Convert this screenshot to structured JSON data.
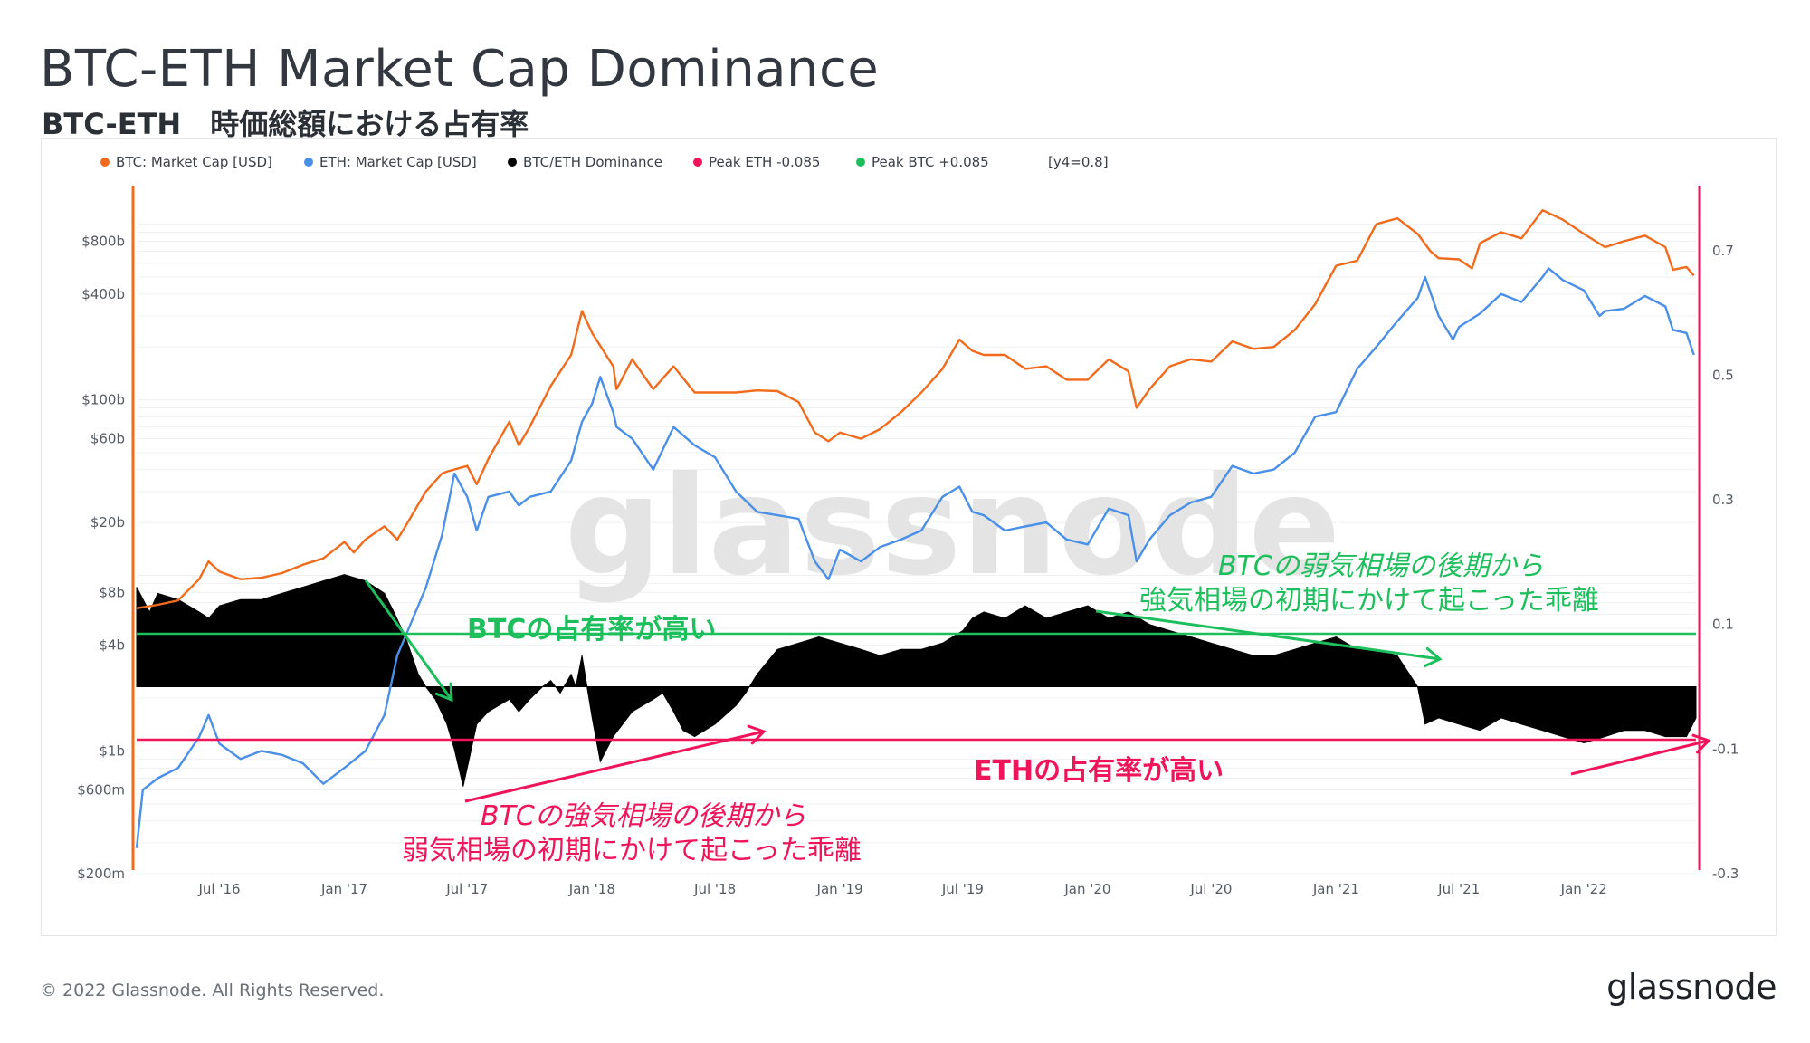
{
  "page": {
    "title": "BTC-ETH Market Cap Dominance",
    "subtitle": "BTC-ETH　時価総額における占有率",
    "footer_copyright": "© 2022 Glassnode. All Rights Reserved.",
    "footer_logo": "glassnode",
    "watermark": "glassnode"
  },
  "colors": {
    "btc": "#f26b1d",
    "eth": "#4a8fe8",
    "dominance": "#000000",
    "peak_eth": "#f0145a",
    "peak_btc": "#1dbf5c",
    "grid": "#eef0f2",
    "axis_text": "#555a62"
  },
  "chart_data": {
    "type": "line",
    "legend": {
      "placement": "top-left",
      "items": [
        {
          "label": "BTC: Market Cap [USD]",
          "color": "#f26b1d"
        },
        {
          "label": "ETH: Market Cap [USD]",
          "color": "#4a8fe8"
        },
        {
          "label": "BTC/ETH Dominance",
          "color": "#000000"
        },
        {
          "label": "Peak ETH -0.085",
          "color": "#f0145a"
        },
        {
          "label": "Peak BTC +0.085",
          "color": "#1dbf5c"
        },
        {
          "label": "[y4=0.8]",
          "color": ""
        }
      ]
    },
    "x_ticks": [
      "Jul '16",
      "Jan '17",
      "Jul '17",
      "Jan '18",
      "Jul '18",
      "Jan '19",
      "Jul '19",
      "Jan '20",
      "Jul '20",
      "Jan '21",
      "Jul '21",
      "Jan '22"
    ],
    "x_tick_dates": [
      "2016-07-01",
      "2017-01-01",
      "2017-07-01",
      "2018-01-01",
      "2018-07-01",
      "2019-01-01",
      "2019-07-01",
      "2020-01-01",
      "2020-07-01",
      "2021-01-01",
      "2021-07-01",
      "2022-01-01"
    ],
    "x_range": [
      "2016-03-01",
      "2022-06-15"
    ],
    "y_left": {
      "scale": "log",
      "ticks": [
        {
          "label": "$800b",
          "value": 800000000000.0
        },
        {
          "label": "$400b",
          "value": 400000000000.0
        },
        {
          "label": "$100b",
          "value": 100000000000.0
        },
        {
          "label": "$60b",
          "value": 60000000000.0
        },
        {
          "label": "$20b",
          "value": 20000000000.0
        },
        {
          "label": "$8b",
          "value": 8000000000.0
        },
        {
          "label": "$4b",
          "value": 4000000000.0
        },
        {
          "label": "$1b",
          "value": 1000000000.0
        },
        {
          "label": "$600m",
          "value": 600000000.0
        },
        {
          "label": "$200m",
          "value": 200000000.0
        }
      ],
      "range": [
        200000000.0,
        1600000000000.0
      ]
    },
    "y_right": {
      "scale": "linear",
      "ticks": [
        {
          "label": "0.7",
          "value": 0.7
        },
        {
          "label": "0.5",
          "value": 0.5
        },
        {
          "label": "0.3",
          "value": 0.3
        },
        {
          "label": "0.1",
          "value": 0.1
        },
        {
          "label": "-0.1",
          "value": -0.1
        },
        {
          "label": "-0.3",
          "value": -0.3
        }
      ],
      "range": [
        -0.3,
        0.8
      ]
    },
    "reference_lines": [
      {
        "label": "Peak BTC +0.085",
        "value": 0.085,
        "axis": "right"
      },
      {
        "label": "Peak ETH -0.085",
        "value": -0.085,
        "axis": "right"
      }
    ],
    "series": [
      {
        "name": "BTC: Market Cap [USD]",
        "axis": "left",
        "x": [
          "2016-03-01",
          "2016-04-01",
          "2016-05-01",
          "2016-06-01",
          "2016-06-15",
          "2016-07-01",
          "2016-08-01",
          "2016-09-01",
          "2016-10-01",
          "2016-11-01",
          "2016-12-01",
          "2017-01-01",
          "2017-01-15",
          "2017-02-01",
          "2017-03-01",
          "2017-03-20",
          "2017-04-01",
          "2017-05-01",
          "2017-05-25",
          "2017-06-01",
          "2017-07-01",
          "2017-07-15",
          "2017-08-01",
          "2017-09-01",
          "2017-09-15",
          "2017-10-01",
          "2017-11-01",
          "2017-12-01",
          "2017-12-17",
          "2018-01-01",
          "2018-02-01",
          "2018-02-06",
          "2018-03-01",
          "2018-04-01",
          "2018-05-01",
          "2018-06-01",
          "2018-07-01",
          "2018-08-01",
          "2018-09-01",
          "2018-10-01",
          "2018-11-01",
          "2018-11-25",
          "2018-12-15",
          "2019-01-01",
          "2019-02-01",
          "2019-03-01",
          "2019-04-01",
          "2019-05-01",
          "2019-06-01",
          "2019-06-26",
          "2019-07-15",
          "2019-08-01",
          "2019-09-01",
          "2019-10-01",
          "2019-11-01",
          "2019-12-01",
          "2020-01-01",
          "2020-02-01",
          "2020-03-01",
          "2020-03-13",
          "2020-04-01",
          "2020-05-01",
          "2020-06-01",
          "2020-07-01",
          "2020-08-01",
          "2020-09-01",
          "2020-10-01",
          "2020-11-01",
          "2020-12-01",
          "2021-01-01",
          "2021-02-01",
          "2021-03-01",
          "2021-04-01",
          "2021-05-01",
          "2021-05-20",
          "2021-06-01",
          "2021-07-01",
          "2021-07-20",
          "2021-08-01",
          "2021-09-01",
          "2021-10-01",
          "2021-11-01",
          "2021-12-01",
          "2022-01-01",
          "2022-02-01",
          "2022-03-01",
          "2022-04-01",
          "2022-05-01",
          "2022-05-12",
          "2022-06-01",
          "2022-06-12"
        ],
        "values": [
          6500000000.0,
          6800000000.0,
          7200000000.0,
          9500000000.0,
          12000000000.0,
          10500000000.0,
          9500000000.0,
          9700000000.0,
          10300000000.0,
          11500000000.0,
          12500000000.0,
          15500000000.0,
          13500000000.0,
          16000000000.0,
          19000000000.0,
          16000000000.0,
          19000000000.0,
          30000000000.0,
          38000000000.0,
          39000000000.0,
          42000000000.0,
          33000000000.0,
          46000000000.0,
          75000000000.0,
          55000000000.0,
          70000000000.0,
          120000000000.0,
          180000000000.0,
          320000000000.0,
          240000000000.0,
          155000000000.0,
          115000000000.0,
          170000000000.0,
          115000000000.0,
          155000000000.0,
          110000000000.0,
          110000000000.0,
          110000000000.0,
          113000000000.0,
          112000000000.0,
          97000000000.0,
          65000000000.0,
          58000000000.0,
          65000000000.0,
          60000000000.0,
          68000000000.0,
          85000000000.0,
          110000000000.0,
          150000000000.0,
          220000000000.0,
          190000000000.0,
          180000000000.0,
          180000000000.0,
          150000000000.0,
          155000000000.0,
          130000000000.0,
          130000000000.0,
          170000000000.0,
          145000000000.0,
          90000000000.0,
          115000000000.0,
          155000000000.0,
          170000000000.0,
          165000000000.0,
          215000000000.0,
          195000000000.0,
          200000000000.0,
          250000000000.0,
          350000000000.0,
          580000000000.0,
          620000000000.0,
          1000000000000.0,
          1080000000000.0,
          880000000000.0,
          700000000000.0,
          640000000000.0,
          630000000000.0,
          560000000000.0,
          780000000000.0,
          900000000000.0,
          830000000000.0,
          1200000000000.0,
          1060000000000.0,
          880000000000.0,
          740000000000.0,
          800000000000.0,
          860000000000.0,
          740000000000.0,
          550000000000.0,
          570000000000.0,
          510000000000.0
        ]
      },
      {
        "name": "ETH: Market Cap [USD]",
        "axis": "left",
        "x": [
          "2016-03-01",
          "2016-03-10",
          "2016-04-01",
          "2016-05-01",
          "2016-06-01",
          "2016-06-15",
          "2016-07-01",
          "2016-08-01",
          "2016-09-01",
          "2016-10-01",
          "2016-11-01",
          "2016-12-01",
          "2017-01-01",
          "2017-02-01",
          "2017-03-01",
          "2017-03-20",
          "2017-04-01",
          "2017-05-01",
          "2017-05-25",
          "2017-06-12",
          "2017-07-01",
          "2017-07-15",
          "2017-08-01",
          "2017-09-01",
          "2017-09-15",
          "2017-10-01",
          "2017-11-01",
          "2017-12-01",
          "2017-12-17",
          "2018-01-01",
          "2018-01-13",
          "2018-02-01",
          "2018-02-06",
          "2018-03-01",
          "2018-04-01",
          "2018-05-01",
          "2018-06-01",
          "2018-07-01",
          "2018-08-01",
          "2018-09-01",
          "2018-10-01",
          "2018-11-01",
          "2018-11-25",
          "2018-12-15",
          "2019-01-01",
          "2019-02-01",
          "2019-03-01",
          "2019-04-01",
          "2019-05-01",
          "2019-06-01",
          "2019-06-26",
          "2019-07-15",
          "2019-08-01",
          "2019-09-01",
          "2019-10-01",
          "2019-11-01",
          "2019-12-01",
          "2020-01-01",
          "2020-02-01",
          "2020-03-01",
          "2020-03-13",
          "2020-04-01",
          "2020-05-01",
          "2020-06-01",
          "2020-07-01",
          "2020-08-01",
          "2020-09-01",
          "2020-10-01",
          "2020-11-01",
          "2020-12-01",
          "2021-01-01",
          "2021-02-01",
          "2021-03-01",
          "2021-04-01",
          "2021-05-01",
          "2021-05-12",
          "2021-06-01",
          "2021-06-22",
          "2021-07-01",
          "2021-08-01",
          "2021-09-01",
          "2021-10-01",
          "2021-11-01",
          "2021-11-10",
          "2021-12-01",
          "2022-01-01",
          "2022-01-24",
          "2022-02-01",
          "2022-03-01",
          "2022-04-01",
          "2022-05-01",
          "2022-05-12",
          "2022-06-01",
          "2022-06-12"
        ],
        "values": [
          280000000.0,
          600000000.0,
          700000000.0,
          800000000.0,
          1200000000.0,
          1600000000.0,
          1100000000.0,
          900000000.0,
          1000000000.0,
          950000000.0,
          850000000.0,
          650000000.0,
          800000000.0,
          1000000000.0,
          1600000000.0,
          3500000000.0,
          4500000000.0,
          8500000000.0,
          17000000000.0,
          38000000000.0,
          28000000000.0,
          18000000000.0,
          28000000000.0,
          30000000000.0,
          25000000000.0,
          28000000000.0,
          30000000000.0,
          45000000000.0,
          75000000000.0,
          95000000000.0,
          135000000000.0,
          85000000000.0,
          70000000000.0,
          60000000000.0,
          40000000000.0,
          70000000000.0,
          55000000000.0,
          47000000000.0,
          30000000000.0,
          23000000000.0,
          22000000000.0,
          21000000000.0,
          12000000000.0,
          9500000000.0,
          14000000000.0,
          12000000000.0,
          14500000000.0,
          16000000000.0,
          18000000000.0,
          28000000000.0,
          32000000000.0,
          23000000000.0,
          22000000000.0,
          18000000000.0,
          19000000000.0,
          20000000000.0,
          16000000000.0,
          15000000000.0,
          24000000000.0,
          22000000000.0,
          12000000000.0,
          16000000000.0,
          22000000000.0,
          26000000000.0,
          28000000000.0,
          42000000000.0,
          38000000000.0,
          40000000000.0,
          50000000000.0,
          80000000000.0,
          85000000000.0,
          150000000000.0,
          200000000000.0,
          280000000000.0,
          380000000000.0,
          500000000000.0,
          300000000000.0,
          220000000000.0,
          260000000000.0,
          310000000000.0,
          400000000000.0,
          360000000000.0,
          500000000000.0,
          560000000000.0,
          480000000000.0,
          420000000000.0,
          300000000000.0,
          320000000000.0,
          330000000000.0,
          390000000000.0,
          340000000000.0,
          250000000000.0,
          240000000000.0,
          180000000000.0
        ]
      },
      {
        "name": "BTC/ETH Dominance",
        "axis": "right",
        "type": "area",
        "x": [
          "2016-03-01",
          "2016-03-20",
          "2016-04-01",
          "2016-05-01",
          "2016-06-01",
          "2016-06-15",
          "2016-07-01",
          "2016-08-01",
          "2016-09-01",
          "2016-10-01",
          "2016-11-01",
          "2016-12-01",
          "2017-01-01",
          "2017-02-01",
          "2017-03-01",
          "2017-03-15",
          "2017-04-01",
          "2017-04-20",
          "2017-05-01",
          "2017-05-15",
          "2017-06-01",
          "2017-06-12",
          "2017-06-25",
          "2017-07-15",
          "2017-08-01",
          "2017-09-01",
          "2017-09-15",
          "2017-10-01",
          "2017-10-20",
          "2017-11-01",
          "2017-11-15",
          "2017-12-01",
          "2017-12-08",
          "2017-12-17",
          "2018-01-01",
          "2018-01-13",
          "2018-02-01",
          "2018-02-15",
          "2018-03-01",
          "2018-04-01",
          "2018-04-15",
          "2018-05-01",
          "2018-05-15",
          "2018-06-01",
          "2018-07-01",
          "2018-08-01",
          "2018-08-15",
          "2018-09-01",
          "2018-10-01",
          "2018-11-01",
          "2018-12-01",
          "2019-01-01",
          "2019-02-01",
          "2019-03-01",
          "2019-04-01",
          "2019-05-01",
          "2019-06-01",
          "2019-07-01",
          "2019-07-15",
          "2019-08-01",
          "2019-09-01",
          "2019-10-01",
          "2019-11-01",
          "2019-12-01",
          "2020-01-01",
          "2020-02-01",
          "2020-03-01",
          "2020-04-01",
          "2020-05-01",
          "2020-06-01",
          "2020-07-01",
          "2020-08-01",
          "2020-09-01",
          "2020-10-01",
          "2020-11-01",
          "2020-12-01",
          "2021-01-01",
          "2021-02-01",
          "2021-03-01",
          "2021-04-01",
          "2021-05-01",
          "2021-05-12",
          "2021-06-01",
          "2021-07-01",
          "2021-08-01",
          "2021-09-01",
          "2021-10-01",
          "2021-11-01",
          "2021-12-01",
          "2022-01-01",
          "2022-02-01",
          "2022-03-01",
          "2022-04-01",
          "2022-05-01",
          "2022-06-01",
          "2022-06-15"
        ],
        "values": [
          0.16,
          0.12,
          0.15,
          0.14,
          0.12,
          0.11,
          0.13,
          0.14,
          0.14,
          0.15,
          0.16,
          0.17,
          0.18,
          0.17,
          0.15,
          0.12,
          0.08,
          0.02,
          0.0,
          -0.02,
          -0.06,
          -0.1,
          -0.16,
          -0.06,
          -0.04,
          -0.02,
          -0.04,
          -0.02,
          0.0,
          0.01,
          -0.01,
          0.02,
          0.0,
          0.05,
          -0.05,
          -0.12,
          -0.08,
          -0.06,
          -0.04,
          -0.02,
          -0.01,
          -0.04,
          -0.07,
          -0.08,
          -0.06,
          -0.03,
          -0.01,
          0.02,
          0.06,
          0.07,
          0.08,
          0.07,
          0.06,
          0.05,
          0.06,
          0.06,
          0.07,
          0.09,
          0.11,
          0.12,
          0.11,
          0.13,
          0.11,
          0.12,
          0.13,
          0.11,
          0.12,
          0.1,
          0.09,
          0.08,
          0.07,
          0.06,
          0.05,
          0.05,
          0.06,
          0.07,
          0.08,
          0.06,
          0.06,
          0.05,
          0.0,
          -0.06,
          -0.05,
          -0.06,
          -0.07,
          -0.05,
          -0.06,
          -0.07,
          -0.08,
          -0.09,
          -0.08,
          -0.07,
          -0.07,
          -0.08,
          -0.08,
          -0.05
        ]
      }
    ],
    "annotations": [
      {
        "text": "BTCの占有率が高い",
        "style": "bold",
        "color": "#1dbf5c"
      },
      {
        "text": "ETHの占有率が高い",
        "style": "bold",
        "color": "#f0145a"
      },
      {
        "text": "BTCの強気相場の後期から",
        "style": "italic",
        "color": "#f0145a"
      },
      {
        "text": "弱気相場の初期にかけて起こった乖離",
        "style": "normal",
        "color": "#f0145a"
      },
      {
        "text": "BTCの弱気相場の後期から",
        "style": "italic",
        "color": "#1dbf5c"
      },
      {
        "text": "強気相場の初期にかけて起こった乖離",
        "style": "normal",
        "color": "#1dbf5c"
      }
    ]
  }
}
